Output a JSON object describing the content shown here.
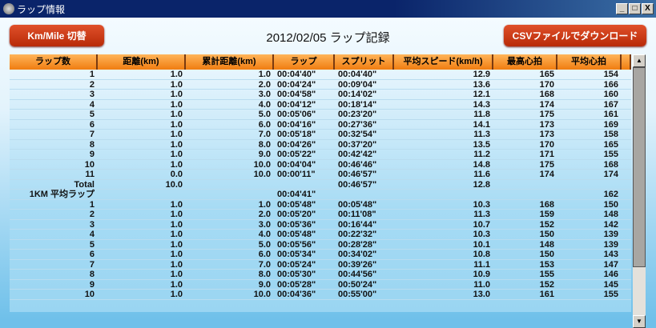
{
  "window": {
    "title": "ラップ情報",
    "min": "_",
    "max": "□",
    "close": "X"
  },
  "toolbar": {
    "unit_toggle": "Km/Mile 切替",
    "title": "2012/02/05 ラップ記録",
    "csv_download": "CSVファイルでダウンロード"
  },
  "table": {
    "headers": [
      "ラップ数",
      "距離(km)",
      "累計距離(km)",
      "ラップ",
      "スプリット",
      "平均スピード(km/h)",
      "最高心拍",
      "平均心拍"
    ],
    "rows": [
      [
        "1",
        "1.0",
        "1.0",
        "00:04'40\"",
        "00:04'40\"",
        "12.9",
        "165",
        "154"
      ],
      [
        "2",
        "1.0",
        "2.0",
        "00:04'24\"",
        "00:09'04\"",
        "13.6",
        "170",
        "166"
      ],
      [
        "3",
        "1.0",
        "3.0",
        "00:04'58\"",
        "00:14'02\"",
        "12.1",
        "168",
        "160"
      ],
      [
        "4",
        "1.0",
        "4.0",
        "00:04'12\"",
        "00:18'14\"",
        "14.3",
        "174",
        "167"
      ],
      [
        "5",
        "1.0",
        "5.0",
        "00:05'06\"",
        "00:23'20\"",
        "11.8",
        "175",
        "161"
      ],
      [
        "6",
        "1.0",
        "6.0",
        "00:04'16\"",
        "00:27'36\"",
        "14.1",
        "173",
        "169"
      ],
      [
        "7",
        "1.0",
        "7.0",
        "00:05'18\"",
        "00:32'54\"",
        "11.3",
        "173",
        "158"
      ],
      [
        "8",
        "1.0",
        "8.0",
        "00:04'26\"",
        "00:37'20\"",
        "13.5",
        "170",
        "165"
      ],
      [
        "9",
        "1.0",
        "9.0",
        "00:05'22\"",
        "00:42'42\"",
        "11.2",
        "171",
        "155"
      ],
      [
        "10",
        "1.0",
        "10.0",
        "00:04'04\"",
        "00:46'46\"",
        "14.8",
        "175",
        "168"
      ],
      [
        "11",
        "0.0",
        "10.0",
        "00:00'11\"",
        "00:46'57\"",
        "11.6",
        "174",
        "174"
      ],
      [
        "Total",
        "10.0",
        "",
        "",
        "00:46'57\"",
        "12.8",
        "",
        ""
      ],
      [
        "1KM 平均ラップ",
        "",
        "",
        "00:04'41\"",
        "",
        "",
        "",
        "162"
      ],
      [
        "1",
        "1.0",
        "1.0",
        "00:05'48\"",
        "00:05'48\"",
        "10.3",
        "168",
        "150"
      ],
      [
        "2",
        "1.0",
        "2.0",
        "00:05'20\"",
        "00:11'08\"",
        "11.3",
        "159",
        "148"
      ],
      [
        "3",
        "1.0",
        "3.0",
        "00:05'36\"",
        "00:16'44\"",
        "10.7",
        "152",
        "142"
      ],
      [
        "4",
        "1.0",
        "4.0",
        "00:05'48\"",
        "00:22'32\"",
        "10.3",
        "150",
        "139"
      ],
      [
        "5",
        "1.0",
        "5.0",
        "00:05'56\"",
        "00:28'28\"",
        "10.1",
        "148",
        "139"
      ],
      [
        "6",
        "1.0",
        "6.0",
        "00:05'34\"",
        "00:34'02\"",
        "10.8",
        "150",
        "143"
      ],
      [
        "7",
        "1.0",
        "7.0",
        "00:05'24\"",
        "00:39'26\"",
        "11.1",
        "153",
        "147"
      ],
      [
        "8",
        "1.0",
        "8.0",
        "00:05'30\"",
        "00:44'56\"",
        "10.9",
        "155",
        "146"
      ],
      [
        "9",
        "1.0",
        "9.0",
        "00:05'28\"",
        "00:50'24\"",
        "11.0",
        "152",
        "145"
      ],
      [
        "10",
        "1.0",
        "10.0",
        "00:04'36\"",
        "00:55'00\"",
        "13.0",
        "161",
        "155"
      ]
    ]
  },
  "scrollbar": {
    "up": "▲",
    "down": "▼",
    "position_fraction": 0.0
  }
}
